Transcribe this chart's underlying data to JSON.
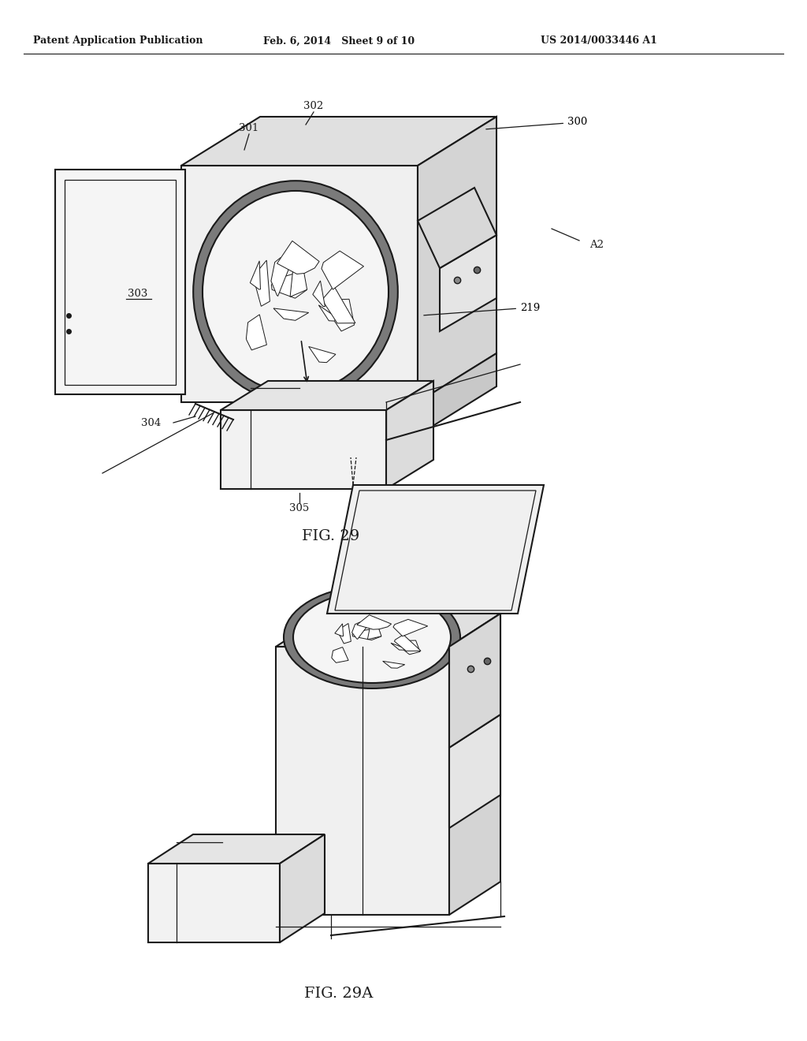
{
  "background_color": "#ffffff",
  "line_color": "#1a1a1a",
  "header_text": "Patent Application Publication",
  "header_date": "Feb. 6, 2014   Sheet 9 of 10",
  "header_patent": "US 2014/0033446 A1",
  "fig29_label": "FIG. 29",
  "fig29a_label": "FIG. 29A"
}
